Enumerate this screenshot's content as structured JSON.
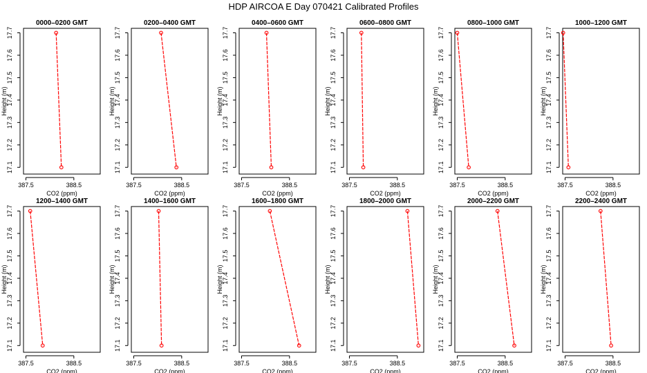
{
  "figure": {
    "title": "HDP  AIRCOA E  Day 070421  Calibrated Profiles"
  },
  "chart_data": [
    {
      "type": "line",
      "title": "0000–0200 GMT",
      "xlabel": "CO2 (ppm)",
      "ylabel": "Height (m)",
      "xlim": [
        387.45,
        389.05
      ],
      "ylim": [
        17.07,
        17.72
      ],
      "xticks": [
        387.5,
        388.5
      ],
      "xtick_labels": [
        "387.5",
        "388.5"
      ],
      "yticks": [
        17.1,
        17.2,
        17.3,
        17.4,
        17.5,
        17.6,
        17.7
      ],
      "ytick_labels": [
        "17.1",
        "17.2",
        "17.3",
        "17.4",
        "17.5",
        "17.6",
        "17.7"
      ],
      "color": "#ff0000",
      "line_dash": true,
      "x": [
        388.13,
        388.24
      ],
      "y": [
        17.7,
        17.1
      ]
    },
    {
      "type": "line",
      "title": "0200–0400 GMT",
      "xlabel": "CO2 (ppm)",
      "ylabel": "Height (m)",
      "xlim": [
        387.45,
        389.05
      ],
      "ylim": [
        17.07,
        17.72
      ],
      "xticks": [
        387.5,
        388.5
      ],
      "xtick_labels": [
        "387.5",
        "388.5"
      ],
      "yticks": [
        17.1,
        17.2,
        17.3,
        17.4,
        17.5,
        17.6,
        17.7
      ],
      "ytick_labels": [
        "17.1",
        "17.2",
        "17.3",
        "17.4",
        "17.5",
        "17.6",
        "17.7"
      ],
      "color": "#ff0000",
      "line_dash": true,
      "x": [
        388.07,
        388.39
      ],
      "y": [
        17.7,
        17.1
      ]
    },
    {
      "type": "line",
      "title": "0400–0600 GMT",
      "xlabel": "CO2 (ppm)",
      "ylabel": "Height (m)",
      "xlim": [
        387.45,
        389.05
      ],
      "ylim": [
        17.07,
        17.72
      ],
      "xticks": [
        387.5,
        388.5
      ],
      "xtick_labels": [
        "387.5",
        "388.5"
      ],
      "yticks": [
        17.1,
        17.2,
        17.3,
        17.4,
        17.5,
        17.6,
        17.7
      ],
      "ytick_labels": [
        "17.1",
        "17.2",
        "17.3",
        "17.4",
        "17.5",
        "17.6",
        "17.7"
      ],
      "color": "#ff0000",
      "line_dash": true,
      "x": [
        388.02,
        388.12
      ],
      "y": [
        17.7,
        17.1
      ]
    },
    {
      "type": "line",
      "title": "0600–0800 GMT",
      "xlabel": "CO2 (ppm)",
      "ylabel": "Height (m)",
      "xlim": [
        387.45,
        389.05
      ],
      "ylim": [
        17.07,
        17.72
      ],
      "xticks": [
        387.5,
        388.5
      ],
      "xtick_labels": [
        "387.5",
        "388.5"
      ],
      "yticks": [
        17.1,
        17.2,
        17.3,
        17.4,
        17.5,
        17.6,
        17.7
      ],
      "ytick_labels": [
        "17.1",
        "17.2",
        "17.3",
        "17.4",
        "17.5",
        "17.6",
        "17.7"
      ],
      "color": "#ff0000",
      "line_dash": true,
      "x": [
        387.75,
        387.79
      ],
      "y": [
        17.7,
        17.1
      ]
    },
    {
      "type": "line",
      "title": "0800–1000 GMT",
      "xlabel": "CO2 (ppm)",
      "ylabel": "Height (m)",
      "xlim": [
        387.45,
        389.05
      ],
      "ylim": [
        17.07,
        17.72
      ],
      "xticks": [
        387.5,
        388.5
      ],
      "xtick_labels": [
        "387.5",
        "388.5"
      ],
      "yticks": [
        17.1,
        17.2,
        17.3,
        17.4,
        17.5,
        17.6,
        17.7
      ],
      "ytick_labels": [
        "17.1",
        "17.2",
        "17.3",
        "17.4",
        "17.5",
        "17.6",
        "17.7"
      ],
      "color": "#ff0000",
      "line_dash": true,
      "x": [
        387.5,
        387.74
      ],
      "y": [
        17.7,
        17.1
      ]
    },
    {
      "type": "line",
      "title": "1000–1200 GMT",
      "xlabel": "CO2 (ppm)",
      "ylabel": "Height (m)",
      "xlim": [
        387.45,
        389.05
      ],
      "ylim": [
        17.07,
        17.72
      ],
      "xticks": [
        387.5,
        388.5
      ],
      "xtick_labels": [
        "387.5",
        "388.5"
      ],
      "yticks": [
        17.1,
        17.2,
        17.3,
        17.4,
        17.5,
        17.6,
        17.7
      ],
      "ytick_labels": [
        "17.1",
        "17.2",
        "17.3",
        "17.4",
        "17.5",
        "17.6",
        "17.7"
      ],
      "color": "#ff0000",
      "line_dash": true,
      "x": [
        387.46,
        387.57
      ],
      "y": [
        17.7,
        17.1
      ]
    },
    {
      "type": "line",
      "title": "1200–1400 GMT",
      "xlabel": "CO2 (ppm)",
      "ylabel": "Height (m)",
      "xlim": [
        387.45,
        389.05
      ],
      "ylim": [
        17.07,
        17.72
      ],
      "xticks": [
        387.5,
        388.5
      ],
      "xtick_labels": [
        "387.5",
        "388.5"
      ],
      "yticks": [
        17.1,
        17.2,
        17.3,
        17.4,
        17.5,
        17.6,
        17.7
      ],
      "ytick_labels": [
        "17.1",
        "17.2",
        "17.3",
        "17.4",
        "17.5",
        "17.6",
        "17.7"
      ],
      "color": "#ff0000",
      "line_dash": true,
      "x": [
        387.59,
        387.85
      ],
      "y": [
        17.7,
        17.1
      ]
    },
    {
      "type": "line",
      "title": "1400–1600 GMT",
      "xlabel": "CO2 (ppm)",
      "ylabel": "Height (m)",
      "xlim": [
        387.45,
        389.05
      ],
      "ylim": [
        17.07,
        17.72
      ],
      "xticks": [
        387.5,
        388.5
      ],
      "xtick_labels": [
        "387.5",
        "388.5"
      ],
      "yticks": [
        17.1,
        17.2,
        17.3,
        17.4,
        17.5,
        17.6,
        17.7
      ],
      "ytick_labels": [
        "17.1",
        "17.2",
        "17.3",
        "17.4",
        "17.5",
        "17.6",
        "17.7"
      ],
      "color": "#ff0000",
      "line_dash": true,
      "x": [
        388.02,
        388.08
      ],
      "y": [
        17.7,
        17.1
      ]
    },
    {
      "type": "line",
      "title": "1600–1800 GMT",
      "xlabel": "CO2 (ppm)",
      "ylabel": "Height (m)",
      "xlim": [
        387.45,
        389.05
      ],
      "ylim": [
        17.07,
        17.72
      ],
      "xticks": [
        387.5,
        388.5
      ],
      "xtick_labels": [
        "387.5",
        "388.5"
      ],
      "yticks": [
        17.1,
        17.2,
        17.3,
        17.4,
        17.5,
        17.6,
        17.7
      ],
      "ytick_labels": [
        "17.1",
        "17.2",
        "17.3",
        "17.4",
        "17.5",
        "17.6",
        "17.7"
      ],
      "color": "#ff0000",
      "line_dash": true,
      "x": [
        388.09,
        388.7
      ],
      "y": [
        17.7,
        17.1
      ]
    },
    {
      "type": "line",
      "title": "1800–2000 GMT",
      "xlabel": "CO2 (ppm)",
      "ylabel": "Height (m)",
      "xlim": [
        387.45,
        389.05
      ],
      "ylim": [
        17.07,
        17.72
      ],
      "xticks": [
        387.5,
        388.5
      ],
      "xtick_labels": [
        "387.5",
        "388.5"
      ],
      "yticks": [
        17.1,
        17.2,
        17.3,
        17.4,
        17.5,
        17.6,
        17.7
      ],
      "ytick_labels": [
        "17.1",
        "17.2",
        "17.3",
        "17.4",
        "17.5",
        "17.6",
        "17.7"
      ],
      "color": "#ff0000",
      "line_dash": true,
      "x": [
        388.71,
        388.94
      ],
      "y": [
        17.7,
        17.1
      ]
    },
    {
      "type": "line",
      "title": "2000–2200 GMT",
      "xlabel": "CO2 (ppm)",
      "ylabel": "Height (m)",
      "xlim": [
        387.45,
        389.05
      ],
      "ylim": [
        17.07,
        17.72
      ],
      "xticks": [
        387.5,
        388.5
      ],
      "xtick_labels": [
        "387.5",
        "388.5"
      ],
      "yticks": [
        17.1,
        17.2,
        17.3,
        17.4,
        17.5,
        17.6,
        17.7
      ],
      "ytick_labels": [
        "17.1",
        "17.2",
        "17.3",
        "17.4",
        "17.5",
        "17.6",
        "17.7"
      ],
      "color": "#ff0000",
      "line_dash": true,
      "x": [
        388.34,
        388.69
      ],
      "y": [
        17.7,
        17.1
      ]
    },
    {
      "type": "line",
      "title": "2200–2400 GMT",
      "xlabel": "CO2 (ppm)",
      "ylabel": "Height (m)",
      "xlim": [
        387.45,
        389.05
      ],
      "ylim": [
        17.07,
        17.72
      ],
      "xticks": [
        387.5,
        388.5
      ],
      "xtick_labels": [
        "387.5",
        "388.5"
      ],
      "yticks": [
        17.1,
        17.2,
        17.3,
        17.4,
        17.5,
        17.6,
        17.7
      ],
      "ytick_labels": [
        "17.1",
        "17.2",
        "17.3",
        "17.4",
        "17.5",
        "17.6",
        "17.7"
      ],
      "color": "#ff0000",
      "line_dash": true,
      "x": [
        388.24,
        388.46
      ],
      "y": [
        17.7,
        17.1
      ]
    }
  ]
}
